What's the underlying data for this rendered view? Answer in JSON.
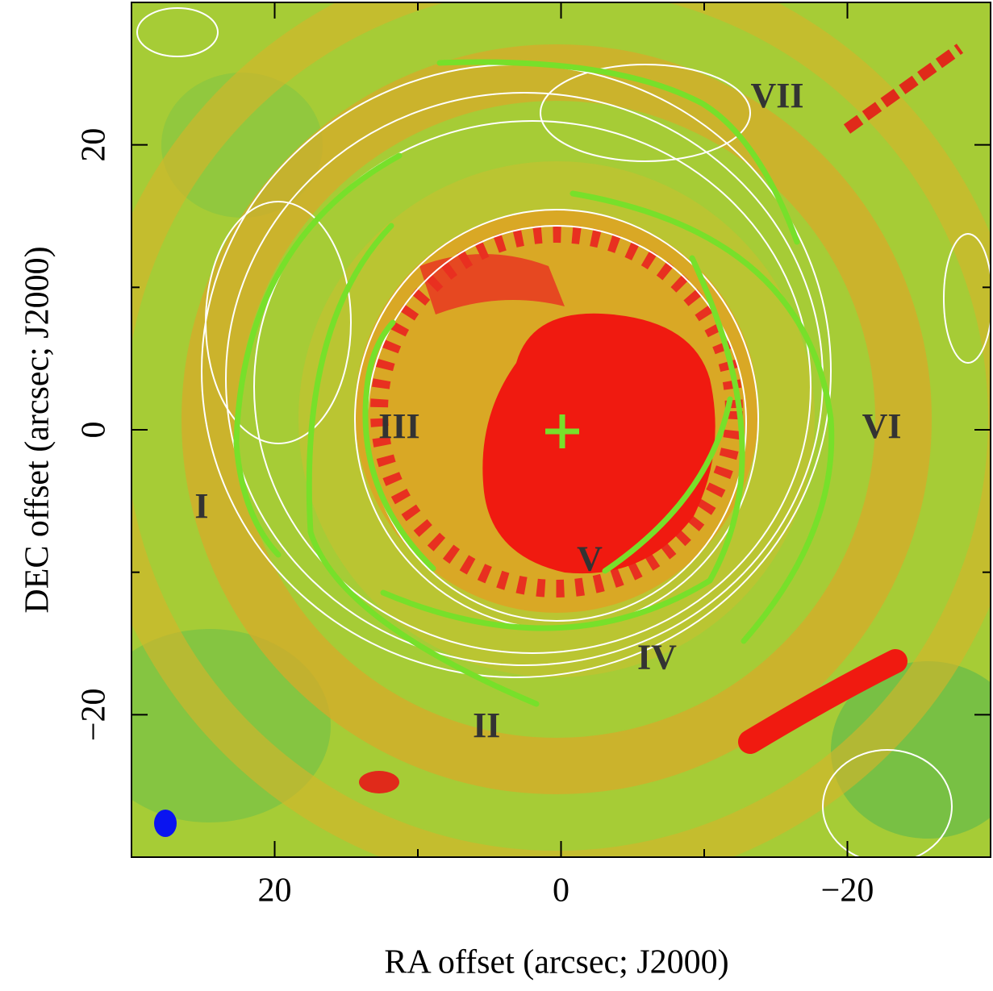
{
  "chart_data": {
    "type": "image",
    "xlabel": "RA offset (arcsec; J2000)",
    "ylabel": "DEC offset (arcsec; J2000)",
    "xlim": [
      30,
      -30
    ],
    "ylim": [
      -30,
      30
    ],
    "xticks": [
      20,
      0,
      {
        "value": -20,
        "label": "−20"
      }
    ],
    "yticks": [
      {
        "value": -20,
        "label": "−20"
      },
      0,
      20
    ],
    "xminorticks": [
      10,
      -10
    ],
    "yminorticks": [
      -10,
      10
    ],
    "annotations": [
      {
        "text": "I",
        "x": 25.1,
        "y": -5.6
      },
      {
        "text": "II",
        "x": 5.2,
        "y": -21
      },
      {
        "text": "III",
        "x": 11.3,
        "y": 0
      },
      {
        "text": "IV",
        "x": -6.7,
        "y": -16.2
      },
      {
        "text": "V",
        "x": -2,
        "y": -9.3
      },
      {
        "text": "VI",
        "x": -22.4,
        "y": 0
      },
      {
        "text": "VII",
        "x": -15.1,
        "y": 23.2
      }
    ]
  }
}
